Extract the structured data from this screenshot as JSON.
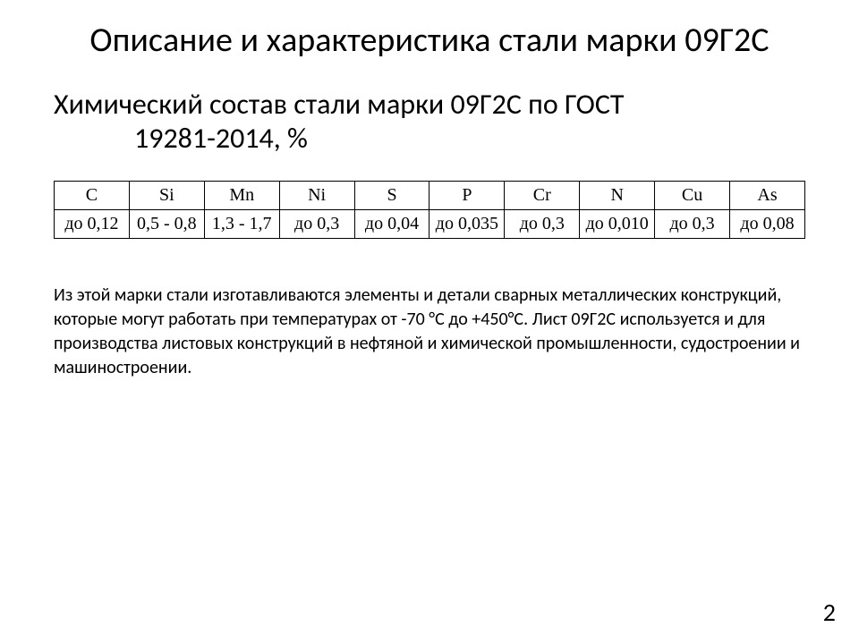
{
  "title": "Описание и характеристика стали марки 09Г2С",
  "subtitle_line1": "Химический состав стали марки 09Г2С по ГОСТ",
  "subtitle_line2": "19281-2014, %",
  "table": {
    "columns": [
      "C",
      "Si",
      "Mn",
      "Ni",
      "S",
      "P",
      "Cr",
      "N",
      "Cu",
      "As"
    ],
    "values": [
      "до 0,12",
      "0,5 - 0,8",
      "1,3 - 1,7",
      "до 0,3",
      "до 0,04",
      "до 0,035",
      "до 0,3",
      "до 0,010",
      "до 0,3",
      "до 0,08"
    ],
    "border_color": "#000000",
    "header_font": "Times New Roman",
    "cell_fontsize": 20
  },
  "description": "Из этой марки стали изготавливаются элементы и детали сварных металлических конструкций, которые могут работать при температурах от -70 °С до +450°С. Лист 09Г2С используется и для производства листовых конструкций в нефтяной и химической промышленности, судостроении и машиностроении.",
  "page_number": "2",
  "colors": {
    "background": "#ffffff",
    "text": "#000000"
  }
}
